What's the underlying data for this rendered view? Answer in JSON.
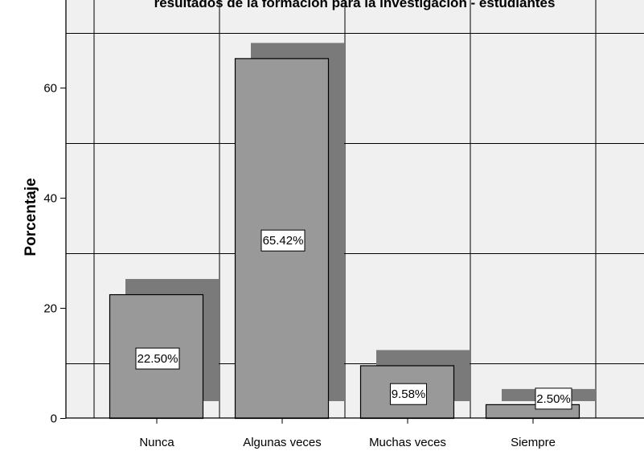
{
  "chart_data": {
    "type": "bar",
    "title": "resultados de la formación para la investigación - estudiantes",
    "xlabel": "",
    "ylabel": "Porcentaje",
    "categories": [
      "Nunca",
      "Algunas veces",
      "Muchas veces",
      "Siempre"
    ],
    "series": [
      {
        "values": [
          22.5,
          65.42,
          9.58,
          2.5
        ]
      }
    ],
    "data_labels": [
      "22.50%",
      "65.42%",
      "9.58%",
      "2.50%"
    ],
    "ylim": [
      0,
      76
    ],
    "yticks": [
      0,
      20,
      40,
      60
    ],
    "grid": true,
    "bar_style": "3d",
    "colors": {
      "plot_background": "#f0f0f0",
      "bar_fill": "#999999",
      "bar_shadow": "#7a7a7a",
      "bar_stroke": "#000000",
      "grid_line": "#000000",
      "label_box": "#ffffff"
    }
  }
}
